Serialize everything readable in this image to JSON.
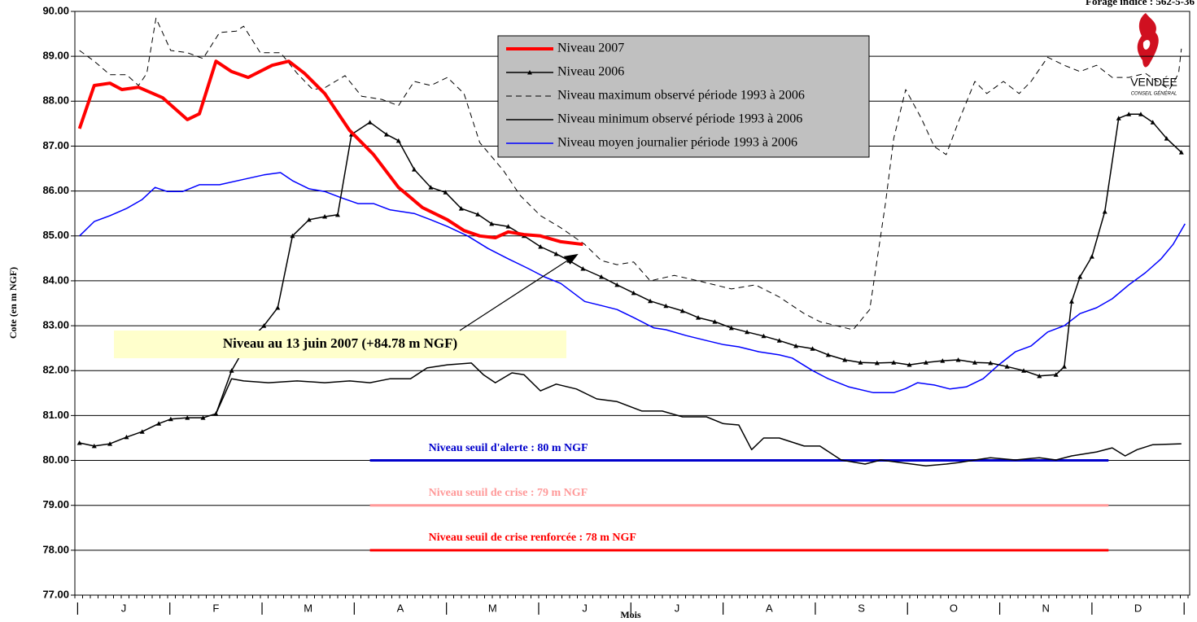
{
  "chart_data": {
    "type": "line",
    "title": "Forage indice : 562-5-36",
    "y_label": "Cote (en m NGF)",
    "x_label": "Mois",
    "logo": [
      "VENDÉE",
      "CONSEIL GÉNÉRAL"
    ],
    "xlim": [
      -0.03,
      12.06
    ],
    "ylim": [
      77,
      90
    ],
    "grid": true,
    "yticks": [
      {
        "value": 77,
        "label": "77.00"
      },
      {
        "value": 78,
        "label": "78.00"
      },
      {
        "value": 79,
        "label": "79.00"
      },
      {
        "value": 80,
        "label": "80.00"
      },
      {
        "value": 81,
        "label": "81.00"
      },
      {
        "value": 82,
        "label": "82.00"
      },
      {
        "value": 83,
        "label": "83.00"
      },
      {
        "value": 84,
        "label": "84.00"
      },
      {
        "value": 85,
        "label": "85.00"
      },
      {
        "value": 86,
        "label": "86.00"
      },
      {
        "value": 87,
        "label": "87.00"
      },
      {
        "value": 88,
        "label": "88.00"
      },
      {
        "value": 89,
        "label": "89.00"
      },
      {
        "value": 90,
        "label": "90.00"
      }
    ],
    "xticks": [
      {
        "value": 0.5,
        "label": "J"
      },
      {
        "value": 1.5,
        "label": "F"
      },
      {
        "value": 2.5,
        "label": "M"
      },
      {
        "value": 3.5,
        "label": "A"
      },
      {
        "value": 4.5,
        "label": "M"
      },
      {
        "value": 5.5,
        "label": "J"
      },
      {
        "value": 6.5,
        "label": "J"
      },
      {
        "value": 7.5,
        "label": "A"
      },
      {
        "value": 8.5,
        "label": "S"
      },
      {
        "value": 9.5,
        "label": "O"
      },
      {
        "value": 10.5,
        "label": "N"
      },
      {
        "value": 11.5,
        "label": "D"
      }
    ],
    "month_separators": [
      0,
      1,
      2,
      3,
      4,
      5,
      6,
      7,
      8,
      9,
      10,
      11,
      12
    ],
    "series": [
      {
        "name": "Niveau 2007",
        "color": "#ff0000",
        "width": 4,
        "dash": "none",
        "marker": false,
        "x": [
          0.02,
          0.18,
          0.35,
          0.48,
          0.66,
          0.92,
          1.19,
          1.32,
          1.5,
          1.67,
          1.85,
          2.11,
          2.29,
          2.46,
          2.68,
          2.95,
          3.21,
          3.48,
          3.74,
          4.01,
          4.19,
          4.36,
          4.53,
          4.67,
          4.84,
          5.02,
          5.24,
          5.48
        ],
        "values": [
          87.39,
          88.35,
          88.4,
          88.26,
          88.31,
          88.08,
          87.59,
          87.72,
          88.89,
          88.66,
          88.53,
          88.8,
          88.89,
          88.62,
          88.17,
          87.35,
          86.81,
          86.08,
          85.63,
          85.36,
          85.12,
          85.0,
          84.96,
          85.09,
          85.03,
          85.0,
          84.87,
          84.81
        ]
      },
      {
        "name": "Niveau 2006",
        "color": "#000000",
        "width": 1.5,
        "dash": "none",
        "marker": true,
        "x": [
          0.02,
          0.18,
          0.35,
          0.53,
          0.7,
          0.88,
          1.01,
          1.19,
          1.36,
          1.5,
          1.67,
          1.85,
          2.02,
          2.17,
          2.33,
          2.51,
          2.68,
          2.82,
          2.97,
          3.17,
          3.35,
          3.48,
          3.65,
          3.83,
          3.99,
          4.16,
          4.34,
          4.49,
          4.67,
          4.84,
          5.02,
          5.19,
          5.33,
          5.48,
          5.68,
          5.85,
          6.03,
          6.21,
          6.38,
          6.56,
          6.73,
          6.91,
          7.09,
          7.26,
          7.44,
          7.61,
          7.79,
          7.97,
          8.14,
          8.32,
          8.49,
          8.67,
          8.85,
          9.02,
          9.2,
          9.38,
          9.55,
          9.73,
          9.9,
          10.08,
          10.26,
          10.43,
          10.61,
          10.7,
          10.78,
          10.87,
          11.0,
          11.14,
          11.29,
          11.4,
          11.53,
          11.66,
          11.81,
          11.97
        ],
        "values": [
          80.39,
          80.32,
          80.37,
          80.52,
          80.64,
          80.82,
          80.92,
          80.95,
          80.95,
          81.04,
          82.0,
          82.64,
          83.0,
          83.4,
          85.0,
          85.36,
          85.43,
          85.47,
          87.26,
          87.53,
          87.26,
          87.12,
          86.48,
          86.08,
          85.97,
          85.61,
          85.48,
          85.27,
          85.21,
          85.0,
          84.76,
          84.6,
          84.45,
          84.27,
          84.09,
          83.91,
          83.73,
          83.55,
          83.44,
          83.33,
          83.18,
          83.09,
          82.95,
          82.86,
          82.77,
          82.67,
          82.55,
          82.49,
          82.35,
          82.24,
          82.18,
          82.17,
          82.18,
          82.13,
          82.18,
          82.22,
          82.24,
          82.18,
          82.17,
          82.09,
          82.0,
          81.88,
          81.91,
          82.09,
          83.54,
          84.09,
          84.54,
          85.54,
          87.62,
          87.71,
          87.71,
          87.53,
          87.17,
          86.86
        ]
      },
      {
        "name": "Niveau maximum observé période 1993 à 2006",
        "color": "#000000",
        "width": 1,
        "dash": "7 5",
        "marker": false,
        "x": [
          0.02,
          0.18,
          0.35,
          0.53,
          0.66,
          0.75,
          0.85,
          1.01,
          1.19,
          1.36,
          1.54,
          1.72,
          1.8,
          1.98,
          2.2,
          2.38,
          2.55,
          2.68,
          2.9,
          3.08,
          3.3,
          3.48,
          3.65,
          3.83,
          4.01,
          4.19,
          4.36,
          4.62,
          4.8,
          5.02,
          5.24,
          5.5,
          5.68,
          5.85,
          6.03,
          6.21,
          6.47,
          6.73,
          6.91,
          7.09,
          7.35,
          7.61,
          7.88,
          8.05,
          8.23,
          8.41,
          8.59,
          8.76,
          8.85,
          8.98,
          9.15,
          9.29,
          9.42,
          9.55,
          9.73,
          9.86,
          10.04,
          10.21,
          10.34,
          10.52,
          10.7,
          10.87,
          11.05,
          11.22,
          11.4,
          11.58,
          11.71,
          11.84,
          11.94,
          11.97
        ],
        "values": [
          89.13,
          88.89,
          88.59,
          88.59,
          88.35,
          88.62,
          89.85,
          89.13,
          89.08,
          88.95,
          89.53,
          89.56,
          89.67,
          89.08,
          89.08,
          88.62,
          88.26,
          88.3,
          88.57,
          88.11,
          88.04,
          87.9,
          88.44,
          88.35,
          88.53,
          88.17,
          87.08,
          86.45,
          85.9,
          85.45,
          85.18,
          84.81,
          84.45,
          84.36,
          84.42,
          84.0,
          84.12,
          84.0,
          83.91,
          83.82,
          83.91,
          83.64,
          83.27,
          83.09,
          83.0,
          82.91,
          83.36,
          85.72,
          87.17,
          88.26,
          87.62,
          86.99,
          86.81,
          87.53,
          88.44,
          88.17,
          88.44,
          88.17,
          88.44,
          88.98,
          88.8,
          88.66,
          88.8,
          88.53,
          88.53,
          88.62,
          88.44,
          88.26,
          88.62,
          89.17
        ]
      },
      {
        "name": "Niveau minimum observé période 1993 à 2006",
        "color": "#000000",
        "width": 1.5,
        "dash": "none",
        "marker": false,
        "x": [
          1.5,
          1.67,
          1.8,
          2.07,
          2.38,
          2.68,
          2.95,
          3.17,
          3.39,
          3.61,
          3.79,
          4.01,
          4.27,
          4.4,
          4.53,
          4.71,
          4.84,
          5.02,
          5.19,
          5.41,
          5.63,
          5.85,
          6.12,
          6.34,
          6.56,
          6.82,
          7.0,
          7.17,
          7.31,
          7.44,
          7.61,
          7.88,
          8.05,
          8.28,
          8.54,
          8.71,
          8.93,
          9.2,
          9.42,
          9.55,
          9.73,
          9.9,
          10.17,
          10.43,
          10.61,
          10.78,
          11.05,
          11.22,
          11.36,
          11.49,
          11.66,
          11.97
        ],
        "values": [
          81.04,
          81.82,
          81.77,
          81.73,
          81.77,
          81.73,
          81.77,
          81.73,
          81.82,
          81.82,
          82.06,
          82.13,
          82.17,
          81.91,
          81.73,
          81.95,
          81.91,
          81.55,
          81.7,
          81.59,
          81.37,
          81.31,
          81.1,
          81.1,
          80.97,
          80.97,
          80.82,
          80.79,
          80.24,
          80.5,
          80.5,
          80.32,
          80.32,
          80.01,
          79.92,
          80.01,
          79.95,
          79.88,
          79.92,
          79.95,
          80.01,
          80.06,
          80.01,
          80.06,
          80.01,
          80.1,
          80.19,
          80.28,
          80.1,
          80.24,
          80.35,
          80.37
        ]
      },
      {
        "name": "Niveau moyen journalier période 1993 à 2006",
        "color": "#0000ff",
        "width": 1.5,
        "dash": "none",
        "marker": false,
        "x": [
          0.02,
          0.18,
          0.35,
          0.53,
          0.7,
          0.84,
          0.97,
          1.14,
          1.32,
          1.54,
          1.8,
          2.02,
          2.2,
          2.33,
          2.51,
          2.68,
          2.86,
          3.04,
          3.21,
          3.39,
          3.65,
          3.83,
          4.01,
          4.23,
          4.45,
          4.67,
          4.89,
          5.06,
          5.24,
          5.5,
          5.68,
          5.85,
          6.03,
          6.25,
          6.38,
          6.6,
          6.82,
          7.0,
          7.17,
          7.39,
          7.61,
          7.75,
          7.97,
          8.14,
          8.36,
          8.63,
          8.85,
          8.98,
          9.11,
          9.29,
          9.46,
          9.64,
          9.82,
          9.99,
          10.17,
          10.34,
          10.52,
          10.7,
          10.87,
          11.05,
          11.22,
          11.4,
          11.58,
          11.75,
          11.88,
          12.01
        ],
        "values": [
          85.0,
          85.32,
          85.45,
          85.61,
          85.81,
          86.08,
          85.99,
          85.99,
          86.14,
          86.14,
          86.26,
          86.36,
          86.41,
          86.23,
          86.05,
          85.99,
          85.85,
          85.72,
          85.72,
          85.58,
          85.5,
          85.36,
          85.21,
          85.0,
          84.72,
          84.49,
          84.27,
          84.09,
          83.94,
          83.54,
          83.45,
          83.36,
          83.18,
          82.95,
          82.91,
          82.78,
          82.67,
          82.58,
          82.53,
          82.42,
          82.35,
          82.28,
          82.0,
          81.82,
          81.64,
          81.51,
          81.51,
          81.6,
          81.73,
          81.68,
          81.59,
          81.64,
          81.82,
          82.13,
          82.42,
          82.55,
          82.86,
          83.0,
          83.27,
          83.4,
          83.6,
          83.91,
          84.18,
          84.49,
          84.81,
          85.27
        ]
      }
    ],
    "reference_lines": [
      {
        "label": "Niveau seuil d'alerte : 80 m NGF",
        "color": "#0000cc",
        "x": [
          3.17,
          11.18
        ],
        "value": 80
      },
      {
        "label": "Niveau seuil de crise : 79 m NGF",
        "color": "#ff9999",
        "x": [
          3.17,
          11.18
        ],
        "value": 79
      },
      {
        "label": "Niveau seuil de crise renforcée : 78  m NGF",
        "color": "#ff0000",
        "x": [
          3.17,
          11.18
        ],
        "value": 78
      }
    ],
    "annotation": {
      "text": "Niveau au 13 juin 2007 (+84.78 m NGF)",
      "x": 5.43,
      "y": 84.6
    }
  }
}
